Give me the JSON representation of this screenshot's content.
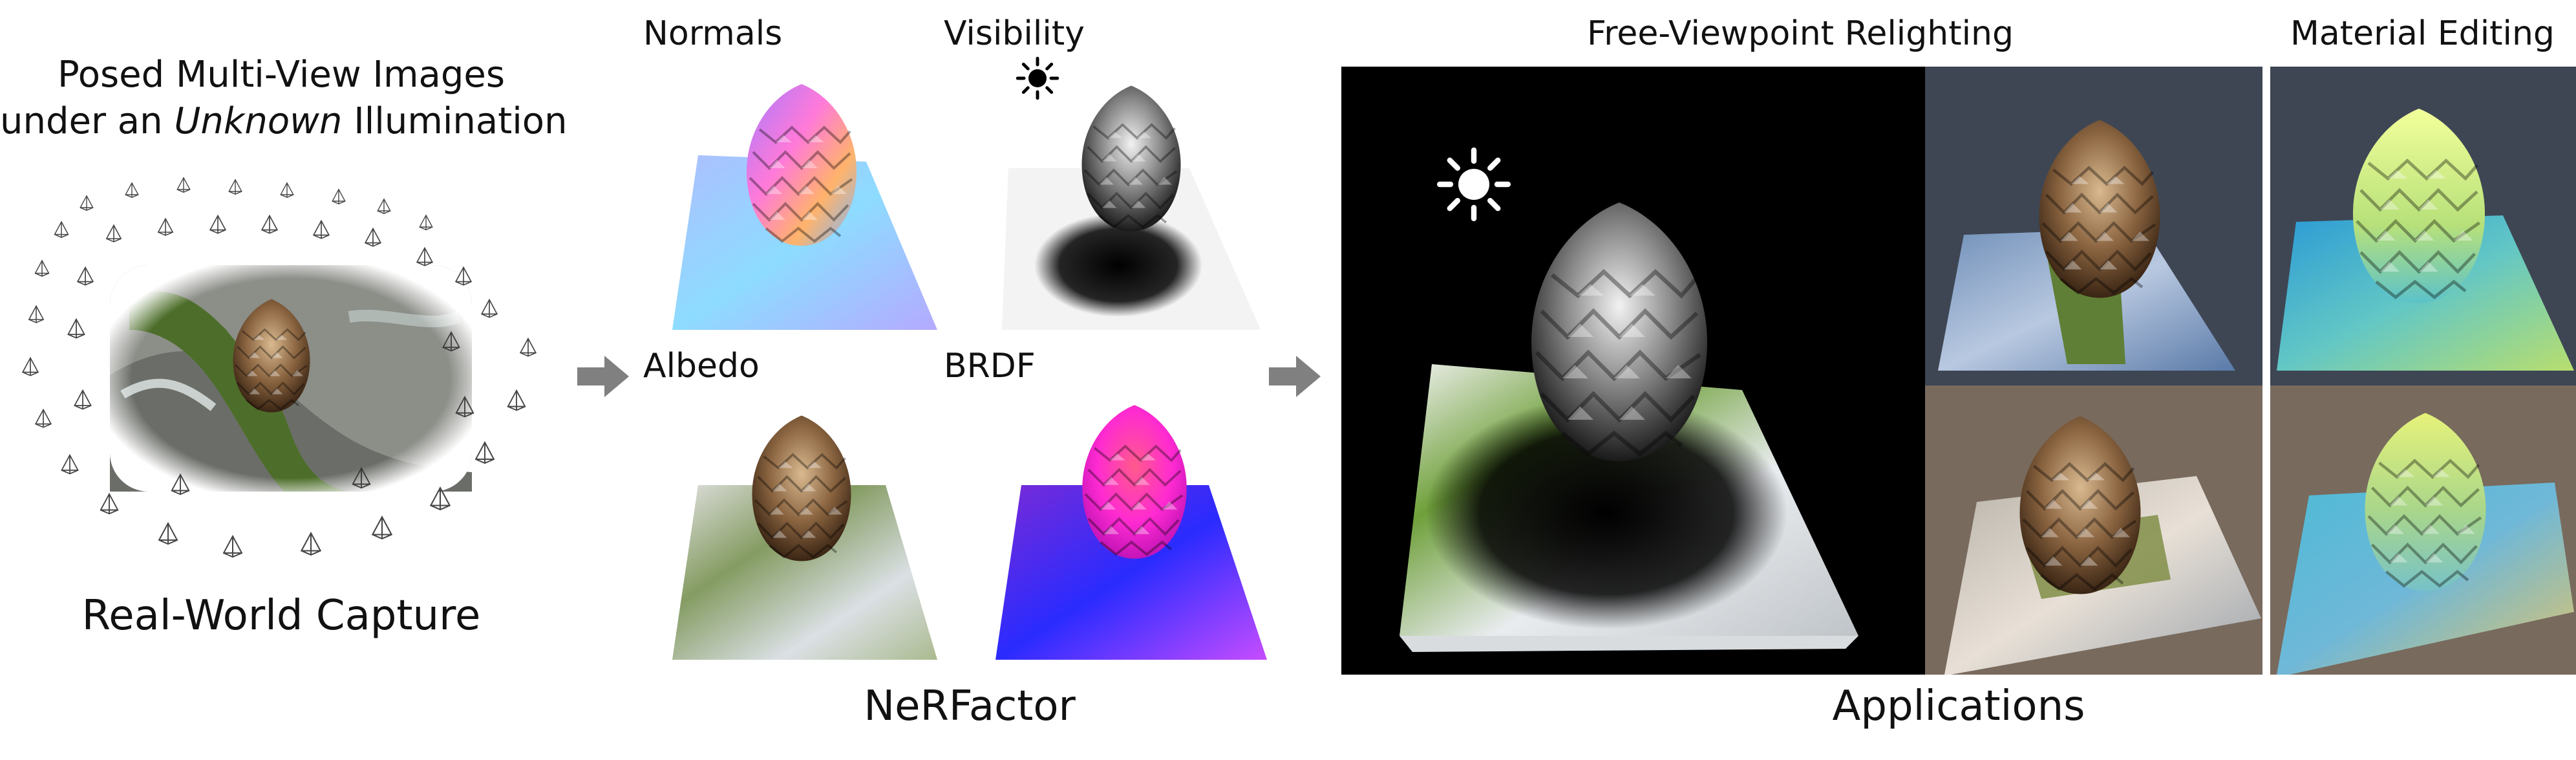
{
  "figure": {
    "input": {
      "caption_line1": "Posed Multi-View Images",
      "caption_line2_pre": "under an ",
      "caption_line2_em": "Unknown",
      "caption_line2_post": " Illumination",
      "section_label": "Real-World Capture"
    },
    "nerfactor": {
      "section_label": "NeRFactor",
      "panels": [
        {
          "label": "Normals"
        },
        {
          "label": "Visibility"
        },
        {
          "label": "Albedo"
        },
        {
          "label": "BRDF"
        }
      ]
    },
    "applications": {
      "section_label": "Applications",
      "relighting_label": "Free-Viewpoint Relighting",
      "material_label": "Material Editing"
    },
    "colors": {
      "arrow": "#808080",
      "relight_bg_main": "#000000",
      "relight_bg_top": "#3e4654",
      "relight_bg_bottom": "#786a5d",
      "material_bg_top": "#3e4654",
      "material_bg_bottom": "#786a5d"
    },
    "icons": [
      "sun-icon",
      "camera-frustum-icon",
      "arrow-right-icon",
      "pinecone-icon"
    ]
  }
}
